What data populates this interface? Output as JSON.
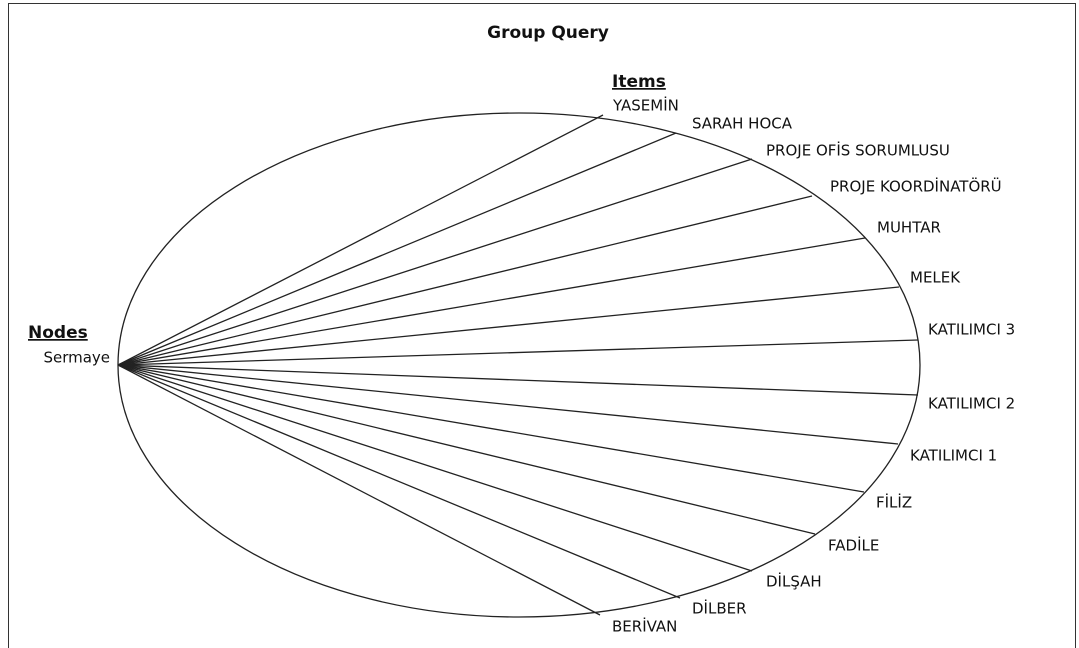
{
  "title": "Group Query",
  "items_header": "Items",
  "nodes_header": "Nodes",
  "node": "Sermaye",
  "items": [
    "YASEMİN",
    "SARAH HOCA",
    "PROJE OFİS SORUMLUSU",
    "PROJE KOORDİNATÖRÜ",
    "MUHTAR",
    "MELEK",
    "KATILIMCI 3",
    "KATILIMCI 2",
    "KATILIMCI 1",
    "FİLİZ",
    "FADİLE",
    "DİLŞAH",
    "DİLBER",
    "BERİVAN"
  ]
}
